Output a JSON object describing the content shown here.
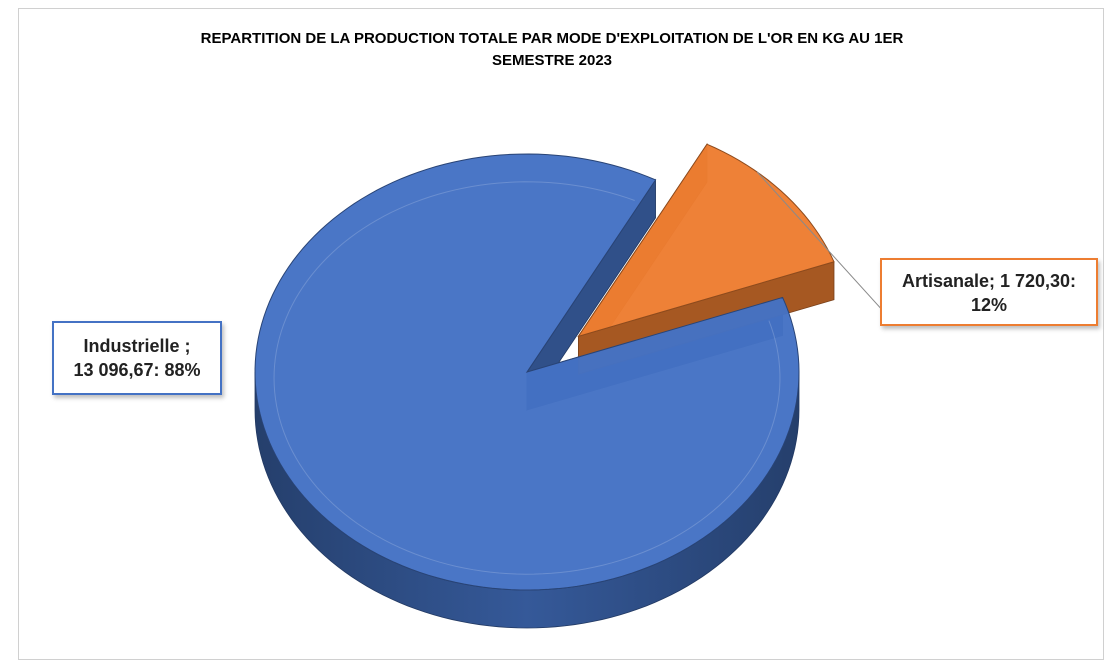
{
  "chart_data": {
    "type": "pie",
    "title_lines": [
      "REPARTITION DE LA PRODUCTION TOTALE PAR MODE D'EXPLOITATION DE L'OR EN KG AU 1ER",
      "SEMESTRE 2023"
    ],
    "three_d": true,
    "slices": [
      {
        "name": "Industrielle",
        "value": 13096.67,
        "percent": 88,
        "color": "#4472c4",
        "label_lines": [
          "Industrielle ;",
          "13 096,67: 88%"
        ]
      },
      {
        "name": "Artisanale",
        "value": 1720.3,
        "percent": 12,
        "color": "#ed7d31",
        "label_lines": [
          "Artisanale; 1 720,30:",
          "12%"
        ],
        "exploded": true
      }
    ]
  }
}
